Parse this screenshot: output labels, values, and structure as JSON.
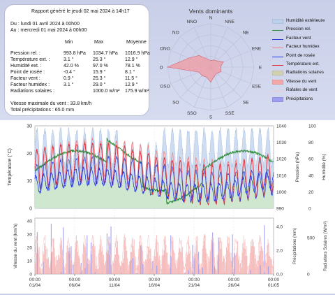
{
  "report": {
    "title": "Rapport généré le jeudi 02 mai 2024 à 14h17",
    "from": "Du : lundi 01 avril 2024 à 00h00",
    "to": "Au : mercredi 01 mai 2024 à 00h00",
    "headers": [
      "Min",
      "Max",
      "Moyenne"
    ],
    "rows": [
      {
        "label": "Pression rel. :",
        "min": "993.8 hPa",
        "max": "1034.7 hPa",
        "avg": "1016.9 hPa"
      },
      {
        "label": "Température ext. :",
        "min": "3.1 °",
        "max": "25.3 °",
        "avg": "12.9 °"
      },
      {
        "label": "Humidité ext. :",
        "min": "42.0 %",
        "max": "97.0 %",
        "avg": "78.1 %"
      },
      {
        "label": "Point de rosée :",
        "min": "-0.4 °",
        "max": "15.9 °",
        "avg": "8.1 °"
      },
      {
        "label": "Facteur vent :",
        "min": "0.9 °",
        "max": "25.3 °",
        "avg": "11.5 °"
      },
      {
        "label": "Facteur humidex :",
        "min": "3.1 °",
        "max": "29.0 °",
        "avg": "12.9 °"
      },
      {
        "label": "Radiations solaires :",
        "min": "",
        "max": "1000.0 w/m²",
        "avg": "175.9 w/m²"
      }
    ],
    "wind_max": "Vitesse maximale du vent : 33.8 km/h",
    "total_rain": "Total précipitations : 65.0 mm"
  },
  "wind_rose": {
    "title": "Vents dominants",
    "directions": [
      "N",
      "NNE",
      "NE",
      "ENE",
      "E",
      "ESE",
      "SE",
      "SSE",
      "S",
      "SSO",
      "SO",
      "OSO",
      "O",
      "ONO",
      "NO",
      "NNO"
    ],
    "values": [
      0.15,
      0.18,
      0.2,
      0.32,
      0.22,
      0.26,
      0.2,
      0.22,
      0.35,
      0.25,
      0.28,
      0.3,
      1.0,
      0.55,
      0.38,
      0.2
    ],
    "fill_color": "#f19aa0"
  },
  "legend": [
    {
      "label": "Humidité extérieure",
      "color": "#bcd0ec",
      "kind": "area"
    },
    {
      "label": "Pression rel.",
      "color": "#2e8b3a",
      "kind": "line"
    },
    {
      "label": "Facteur vent",
      "color": "#2a3fd6",
      "kind": "line"
    },
    {
      "label": "Facteur humidex",
      "color": "#f08080",
      "kind": "line"
    },
    {
      "label": "Point de rosée",
      "color": "#2233ee",
      "kind": "line"
    },
    {
      "label": "Température ext.",
      "color": "#e0303a",
      "kind": "line"
    },
    {
      "label": "Radiations solaires",
      "color": "#d2d0b0",
      "kind": "area"
    },
    {
      "label": "Vitesse du vent",
      "color": "#f2a8a8",
      "kind": "area"
    },
    {
      "label": "Rafales de vent",
      "color": "#f4c8c8",
      "kind": "line"
    },
    {
      "label": "Précipitations",
      "color": "#9c9cf0",
      "kind": "area"
    }
  ],
  "axes": {
    "temp_label": "Température (°C)",
    "temp_ticks": [
      "30",
      "20",
      "10",
      "0"
    ],
    "pressure_label": "Pression (hPa)",
    "pressure_ticks": [
      "1040",
      "1030",
      "1020",
      "1010",
      "1000",
      "990"
    ],
    "humidity_label": "Humidité (%)",
    "humidity_ticks": [
      "100",
      "80",
      "60",
      "40",
      "20",
      "0"
    ],
    "wind_label": "Vitesse du vent (km/h)",
    "wind_ticks": [
      "40",
      "30",
      "20",
      "10",
      "0"
    ],
    "rain_label": "Précipitations (mm)",
    "rain_ticks": [
      "4.0",
      "2.0",
      "0.0"
    ],
    "solar_label": "Radiations Solaires (W/m²)",
    "solar_ticks": [
      "500",
      "0"
    ],
    "hour_label": "00:00",
    "dates": [
      "01/04",
      "06/04",
      "11/04",
      "16/04",
      "21/04",
      "26/04",
      "01/05"
    ]
  }
}
